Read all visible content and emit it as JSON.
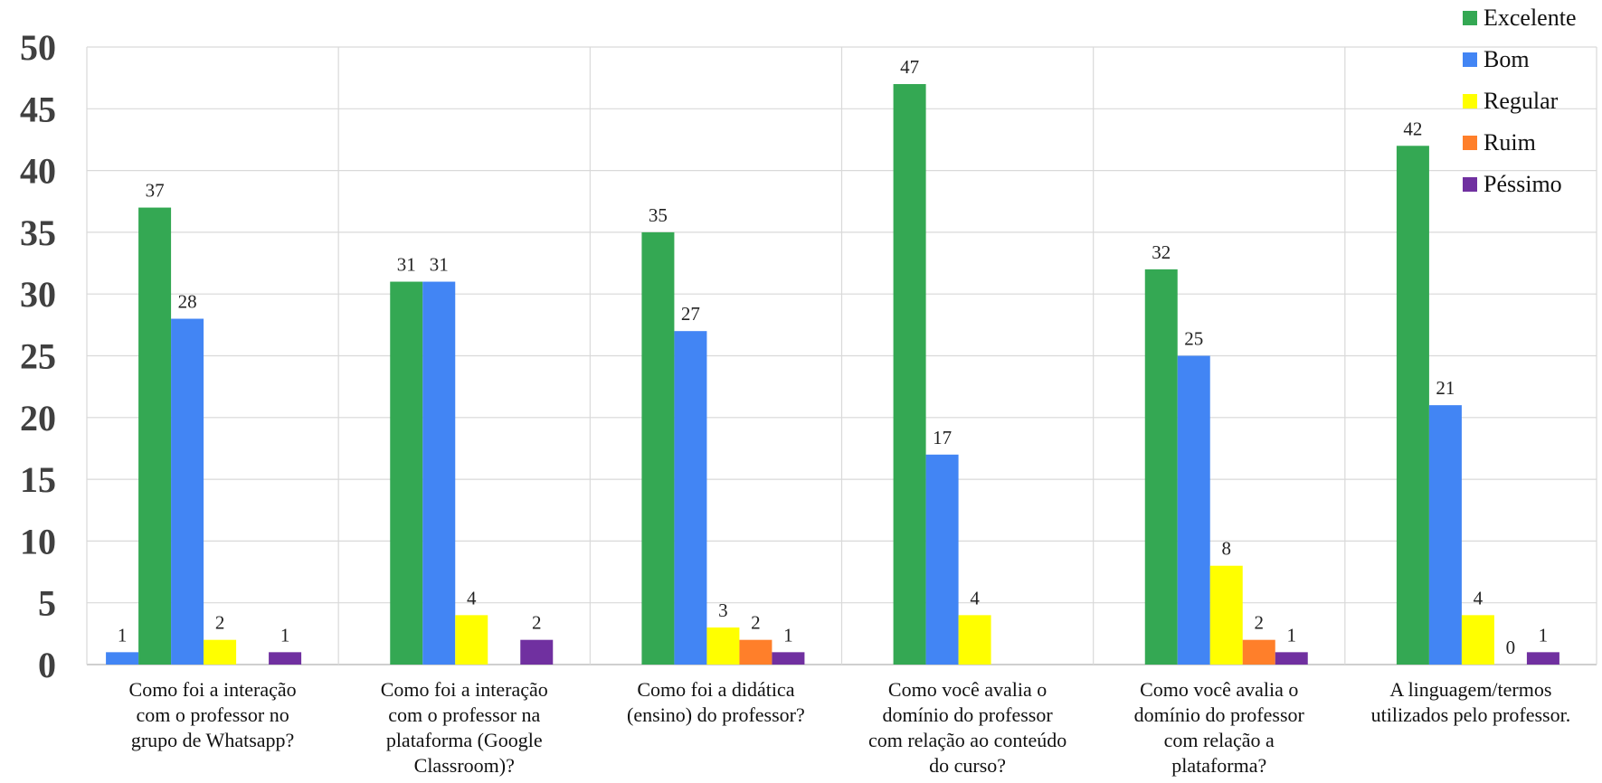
{
  "chart_data": {
    "type": "bar",
    "ylim": [
      0,
      50
    ],
    "yticks": [
      0,
      5,
      10,
      15,
      20,
      25,
      30,
      35,
      40,
      45,
      50
    ],
    "grid": true,
    "legend_position": "top-right",
    "categories": [
      [
        "Como foi a interação",
        "com o professor no",
        "grupo de Whatsapp?"
      ],
      [
        "Como foi a interação",
        "com o professor na",
        "plataforma (Google",
        "Classroom)?"
      ],
      [
        "Como foi a didática",
        "(ensino) do professor?"
      ],
      [
        "Como você avalia o",
        "domínio do professor",
        "com relação ao conteúdo",
        "do curso?"
      ],
      [
        "Como você avalia o",
        "domínio do professor",
        "com relação a",
        "plataforma?"
      ],
      [
        "A linguagem/termos",
        "utilizados pelo professor."
      ]
    ],
    "series": [
      {
        "name": "Excelente",
        "color": "#34a853",
        "values": [
          37,
          31,
          35,
          47,
          32,
          42
        ],
        "labels": [
          "37",
          "31",
          "35",
          "47",
          "32",
          "42"
        ]
      },
      {
        "name": "Bom",
        "color": "#4285f4",
        "values": [
          28,
          31,
          27,
          17,
          25,
          21
        ],
        "labels": [
          "28",
          "31",
          "27",
          "17",
          "25",
          "21"
        ]
      },
      {
        "name": "Regular",
        "color": "#ffff00",
        "values": [
          2,
          4,
          3,
          4,
          8,
          4
        ],
        "labels": [
          "2",
          "4",
          "3",
          "4",
          "8",
          "4"
        ]
      },
      {
        "name": "Ruim",
        "color": "#ff7f2a",
        "values": [
          null,
          null,
          2,
          null,
          2,
          0
        ],
        "labels": [
          "",
          "",
          "2",
          "",
          "2",
          "0"
        ]
      },
      {
        "name": "Péssimo",
        "color": "#7030a0",
        "values": [
          1,
          2,
          1,
          null,
          1,
          1
        ],
        "labels": [
          "1",
          "2",
          "1",
          "",
          "1",
          "1"
        ]
      }
    ],
    "extra_bars": [
      {
        "category_index": 0,
        "value": 1,
        "label": "1",
        "color": "#4285f4"
      }
    ]
  }
}
